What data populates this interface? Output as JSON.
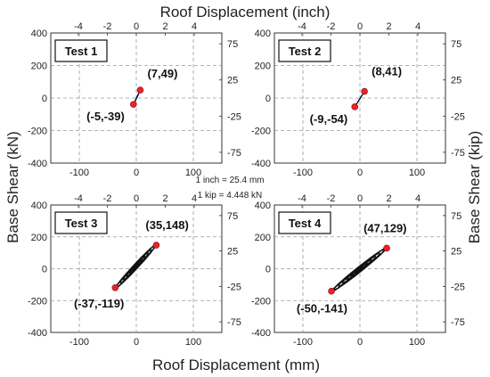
{
  "figure": {
    "top_title": "Roof Displacement (inch)",
    "bottom_title": "Roof Displacement (mm)",
    "left_title": "Base Shear (kN)",
    "right_title": "Base Shear (kip)",
    "note_inch": "1 inch = 25.4 mm",
    "note_kip": "1 kip = 4.448 kN",
    "colors": {
      "curve": "#111111",
      "peak": "#e8242b",
      "grid": "#999999"
    }
  },
  "chart_data": [
    {
      "type": "scatter",
      "title": "Test 1",
      "xlabel": "Roof Displacement (mm)",
      "ylabel": "Base Shear (kN)",
      "xlim": [
        -150,
        150
      ],
      "ylim": [
        -400,
        400
      ],
      "x_ticks": [
        "-100",
        "0",
        "100"
      ],
      "y_ticks": [
        "400",
        "200",
        "0",
        "-200",
        "-400"
      ],
      "x2_ticks": [
        "-4",
        "-2",
        "0",
        "2",
        "4"
      ],
      "y2_ticks": [
        "75",
        "25",
        "-25",
        "-75"
      ],
      "grid": "dashed",
      "peaks": [
        {
          "x": 7,
          "y": 49,
          "label": "(7,49)"
        },
        {
          "x": -5,
          "y": -39,
          "label": "(-5,-39)"
        }
      ],
      "loop_amplitude": [
        0.25,
        0.5,
        0.75,
        1.0
      ],
      "loop_width": 0.05
    },
    {
      "type": "scatter",
      "title": "Test 2",
      "xlabel": "Roof Displacement (mm)",
      "ylabel": "Base Shear (kN)",
      "xlim": [
        -150,
        150
      ],
      "ylim": [
        -400,
        400
      ],
      "x_ticks": [
        "-100",
        "0",
        "100"
      ],
      "y_ticks": [
        "400",
        "200",
        "0",
        "-200",
        "-400"
      ],
      "x2_ticks": [
        "-4",
        "-2",
        "0",
        "2",
        "4"
      ],
      "y2_ticks": [
        "75",
        "25",
        "-25",
        "-75"
      ],
      "grid": "dashed",
      "peaks": [
        {
          "x": 8,
          "y": 41,
          "label": "(8,41)"
        },
        {
          "x": -9,
          "y": -54,
          "label": "(-9,-54)"
        }
      ],
      "loop_amplitude": [
        0.25,
        0.5,
        0.75,
        1.0
      ],
      "loop_width": 0.06
    },
    {
      "type": "scatter",
      "title": "Test 3",
      "xlabel": "Roof Displacement (mm)",
      "ylabel": "Base Shear (kN)",
      "xlim": [
        -150,
        150
      ],
      "ylim": [
        -400,
        400
      ],
      "x_ticks": [
        "-100",
        "0",
        "100"
      ],
      "y_ticks": [
        "400",
        "200",
        "0",
        "-200",
        "-400"
      ],
      "x2_ticks": [
        "-4",
        "-2",
        "0",
        "2",
        "4"
      ],
      "y2_ticks": [
        "75",
        "25",
        "-25",
        "-75"
      ],
      "grid": "dashed",
      "peaks": [
        {
          "x": 35,
          "y": 148,
          "label": "(35,148)"
        },
        {
          "x": -37,
          "y": -119,
          "label": "(-37,-119)"
        }
      ],
      "loop_amplitude": [
        0.15,
        0.3,
        0.45,
        0.6,
        0.75,
        0.9,
        1.0
      ],
      "loop_width": 0.2
    },
    {
      "type": "scatter",
      "title": "Test 4",
      "xlabel": "Roof Displacement (mm)",
      "ylabel": "Base Shear (kN)",
      "xlim": [
        -150,
        150
      ],
      "ylim": [
        -400,
        400
      ],
      "x_ticks": [
        "-100",
        "0",
        "100"
      ],
      "y_ticks": [
        "400",
        "200",
        "0",
        "-200",
        "-400"
      ],
      "x2_ticks": [
        "-4",
        "-2",
        "0",
        "2",
        "4"
      ],
      "y2_ticks": [
        "75",
        "25",
        "-25",
        "-75"
      ],
      "grid": "dashed",
      "peaks": [
        {
          "x": 47,
          "y": 129,
          "label": "(47,129)"
        },
        {
          "x": -50,
          "y": -141,
          "label": "(-50,-141)"
        }
      ],
      "loop_amplitude": [
        0.15,
        0.3,
        0.45,
        0.6,
        0.75,
        0.9,
        1.0
      ],
      "loop_width": 0.15
    }
  ]
}
